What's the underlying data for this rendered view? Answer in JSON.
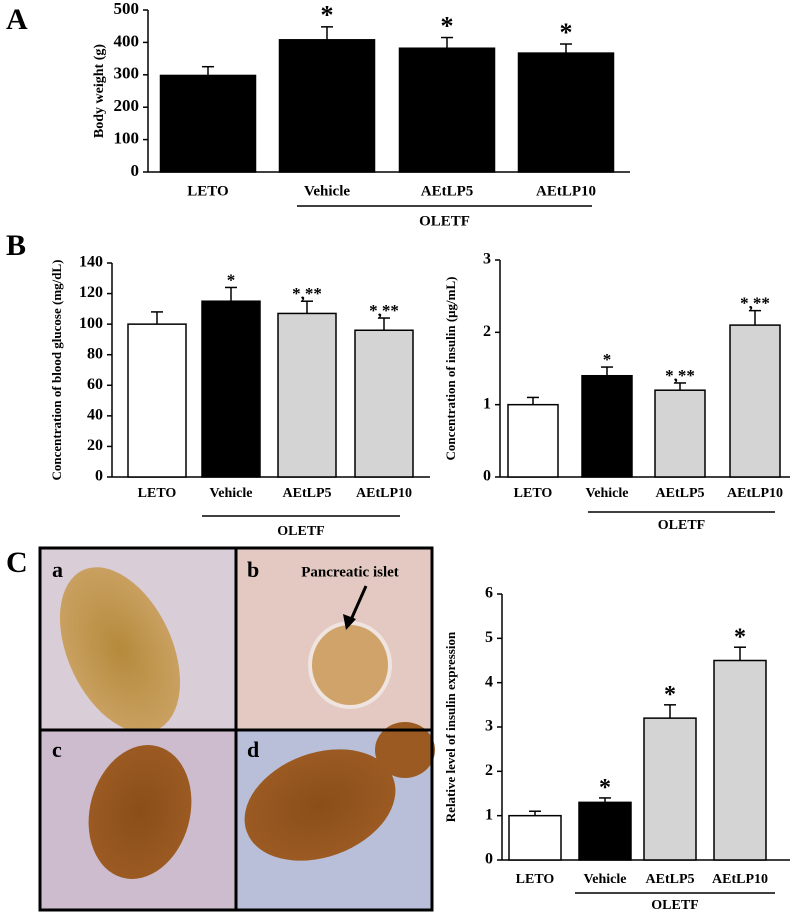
{
  "chart_data": [
    {
      "type": "bar",
      "panel": "A",
      "y_label": "Body weight (g)",
      "categories": [
        "LETO",
        "Vehicle",
        "AEtLP5",
        "AEtLP10"
      ],
      "group_label": "OLETF",
      "values": [
        298,
        408,
        382,
        367
      ],
      "errors": [
        27,
        40,
        33,
        28
      ],
      "colors": [
        "#000000",
        "#000000",
        "#000000",
        "#000000"
      ],
      "annotations": [
        null,
        "*",
        "*",
        "*"
      ],
      "ylim": [
        0,
        500
      ],
      "yticks": [
        0,
        100,
        200,
        300,
        400,
        500
      ]
    },
    {
      "type": "bar",
      "panel": "B",
      "y_label": "Concentration of blood glucose (mg/dL)",
      "categories": [
        "LETO",
        "Vehicle",
        "AEtLP5",
        "AEtLP10"
      ],
      "group_label": "OLETF",
      "values": [
        100,
        115,
        107,
        96
      ],
      "errors": [
        8,
        9,
        8,
        8
      ],
      "colors": [
        "#ffffff",
        "#000000",
        "#d4d4d4",
        "#d4d4d4"
      ],
      "annotations": [
        null,
        "*",
        "*,**",
        "*,**"
      ],
      "ylim": [
        0,
        140
      ],
      "yticks": [
        0,
        20,
        40,
        60,
        80,
        100,
        120,
        140
      ]
    },
    {
      "type": "bar",
      "y_label": "Concentration of insulin (μg/mL)",
      "categories": [
        "LETO",
        "Vehicle",
        "AEtLP5",
        "AEtLP10"
      ],
      "group_label": "OLETF",
      "values": [
        1.0,
        1.4,
        1.2,
        2.1
      ],
      "errors": [
        0.1,
        0.12,
        0.1,
        0.2
      ],
      "colors": [
        "#ffffff",
        "#000000",
        "#d4d4d4",
        "#d4d4d4"
      ],
      "annotations": [
        null,
        "*",
        "*,**",
        "*,**"
      ],
      "ylim": [
        0,
        3
      ],
      "yticks": [
        0,
        1,
        2,
        3
      ]
    },
    {
      "type": "bar",
      "panel": "C",
      "y_label": "Relative level of insulin expression",
      "categories": [
        "LETO",
        "Vehicle",
        "AEtLP5",
        "AEtLP10"
      ],
      "group_label": "OLETF",
      "values": [
        1.0,
        1.3,
        3.2,
        4.5
      ],
      "errors": [
        0.1,
        0.1,
        0.3,
        0.3
      ],
      "colors": [
        "#ffffff",
        "#000000",
        "#d4d4d4",
        "#d4d4d4"
      ],
      "annotations": [
        null,
        "*",
        "*",
        "*"
      ],
      "ylim": [
        0,
        6
      ],
      "yticks": [
        0,
        1,
        2,
        3,
        4,
        5,
        6
      ]
    }
  ],
  "images": {
    "labels": [
      "a",
      "b",
      "c",
      "d"
    ],
    "annotation": "Pancreatic islet"
  }
}
